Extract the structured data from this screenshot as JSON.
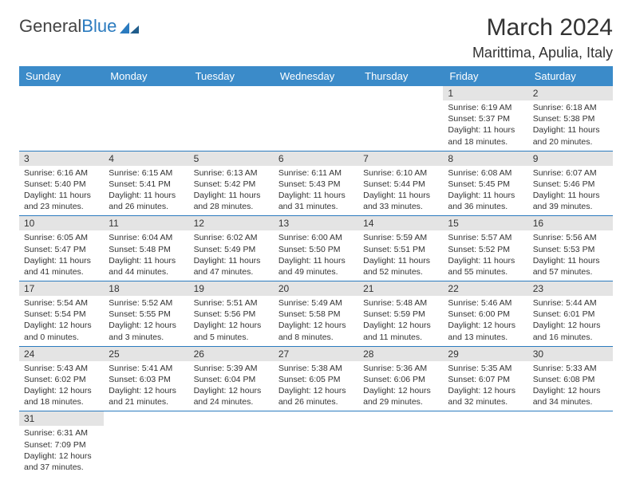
{
  "brand": {
    "part1": "General",
    "part2": "Blue"
  },
  "title": {
    "month": "March 2024",
    "location": "Marittima, Apulia, Italy"
  },
  "colors": {
    "header_bg": "#3b8bc9",
    "header_fg": "#ffffff",
    "accent": "#2b7bbf",
    "daynum_bg": "#e4e4e4",
    "text": "#333333"
  },
  "day_headers": [
    "Sunday",
    "Monday",
    "Tuesday",
    "Wednesday",
    "Thursday",
    "Friday",
    "Saturday"
  ],
  "weeks": [
    [
      null,
      null,
      null,
      null,
      null,
      {
        "n": "1",
        "sunrise": "Sunrise: 6:19 AM",
        "sunset": "Sunset: 5:37 PM",
        "daylight": "Daylight: 11 hours and 18 minutes."
      },
      {
        "n": "2",
        "sunrise": "Sunrise: 6:18 AM",
        "sunset": "Sunset: 5:38 PM",
        "daylight": "Daylight: 11 hours and 20 minutes."
      }
    ],
    [
      {
        "n": "3",
        "sunrise": "Sunrise: 6:16 AM",
        "sunset": "Sunset: 5:40 PM",
        "daylight": "Daylight: 11 hours and 23 minutes."
      },
      {
        "n": "4",
        "sunrise": "Sunrise: 6:15 AM",
        "sunset": "Sunset: 5:41 PM",
        "daylight": "Daylight: 11 hours and 26 minutes."
      },
      {
        "n": "5",
        "sunrise": "Sunrise: 6:13 AM",
        "sunset": "Sunset: 5:42 PM",
        "daylight": "Daylight: 11 hours and 28 minutes."
      },
      {
        "n": "6",
        "sunrise": "Sunrise: 6:11 AM",
        "sunset": "Sunset: 5:43 PM",
        "daylight": "Daylight: 11 hours and 31 minutes."
      },
      {
        "n": "7",
        "sunrise": "Sunrise: 6:10 AM",
        "sunset": "Sunset: 5:44 PM",
        "daylight": "Daylight: 11 hours and 33 minutes."
      },
      {
        "n": "8",
        "sunrise": "Sunrise: 6:08 AM",
        "sunset": "Sunset: 5:45 PM",
        "daylight": "Daylight: 11 hours and 36 minutes."
      },
      {
        "n": "9",
        "sunrise": "Sunrise: 6:07 AM",
        "sunset": "Sunset: 5:46 PM",
        "daylight": "Daylight: 11 hours and 39 minutes."
      }
    ],
    [
      {
        "n": "10",
        "sunrise": "Sunrise: 6:05 AM",
        "sunset": "Sunset: 5:47 PM",
        "daylight": "Daylight: 11 hours and 41 minutes."
      },
      {
        "n": "11",
        "sunrise": "Sunrise: 6:04 AM",
        "sunset": "Sunset: 5:48 PM",
        "daylight": "Daylight: 11 hours and 44 minutes."
      },
      {
        "n": "12",
        "sunrise": "Sunrise: 6:02 AM",
        "sunset": "Sunset: 5:49 PM",
        "daylight": "Daylight: 11 hours and 47 minutes."
      },
      {
        "n": "13",
        "sunrise": "Sunrise: 6:00 AM",
        "sunset": "Sunset: 5:50 PM",
        "daylight": "Daylight: 11 hours and 49 minutes."
      },
      {
        "n": "14",
        "sunrise": "Sunrise: 5:59 AM",
        "sunset": "Sunset: 5:51 PM",
        "daylight": "Daylight: 11 hours and 52 minutes."
      },
      {
        "n": "15",
        "sunrise": "Sunrise: 5:57 AM",
        "sunset": "Sunset: 5:52 PM",
        "daylight": "Daylight: 11 hours and 55 minutes."
      },
      {
        "n": "16",
        "sunrise": "Sunrise: 5:56 AM",
        "sunset": "Sunset: 5:53 PM",
        "daylight": "Daylight: 11 hours and 57 minutes."
      }
    ],
    [
      {
        "n": "17",
        "sunrise": "Sunrise: 5:54 AM",
        "sunset": "Sunset: 5:54 PM",
        "daylight": "Daylight: 12 hours and 0 minutes."
      },
      {
        "n": "18",
        "sunrise": "Sunrise: 5:52 AM",
        "sunset": "Sunset: 5:55 PM",
        "daylight": "Daylight: 12 hours and 3 minutes."
      },
      {
        "n": "19",
        "sunrise": "Sunrise: 5:51 AM",
        "sunset": "Sunset: 5:56 PM",
        "daylight": "Daylight: 12 hours and 5 minutes."
      },
      {
        "n": "20",
        "sunrise": "Sunrise: 5:49 AM",
        "sunset": "Sunset: 5:58 PM",
        "daylight": "Daylight: 12 hours and 8 minutes."
      },
      {
        "n": "21",
        "sunrise": "Sunrise: 5:48 AM",
        "sunset": "Sunset: 5:59 PM",
        "daylight": "Daylight: 12 hours and 11 minutes."
      },
      {
        "n": "22",
        "sunrise": "Sunrise: 5:46 AM",
        "sunset": "Sunset: 6:00 PM",
        "daylight": "Daylight: 12 hours and 13 minutes."
      },
      {
        "n": "23",
        "sunrise": "Sunrise: 5:44 AM",
        "sunset": "Sunset: 6:01 PM",
        "daylight": "Daylight: 12 hours and 16 minutes."
      }
    ],
    [
      {
        "n": "24",
        "sunrise": "Sunrise: 5:43 AM",
        "sunset": "Sunset: 6:02 PM",
        "daylight": "Daylight: 12 hours and 18 minutes."
      },
      {
        "n": "25",
        "sunrise": "Sunrise: 5:41 AM",
        "sunset": "Sunset: 6:03 PM",
        "daylight": "Daylight: 12 hours and 21 minutes."
      },
      {
        "n": "26",
        "sunrise": "Sunrise: 5:39 AM",
        "sunset": "Sunset: 6:04 PM",
        "daylight": "Daylight: 12 hours and 24 minutes."
      },
      {
        "n": "27",
        "sunrise": "Sunrise: 5:38 AM",
        "sunset": "Sunset: 6:05 PM",
        "daylight": "Daylight: 12 hours and 26 minutes."
      },
      {
        "n": "28",
        "sunrise": "Sunrise: 5:36 AM",
        "sunset": "Sunset: 6:06 PM",
        "daylight": "Daylight: 12 hours and 29 minutes."
      },
      {
        "n": "29",
        "sunrise": "Sunrise: 5:35 AM",
        "sunset": "Sunset: 6:07 PM",
        "daylight": "Daylight: 12 hours and 32 minutes."
      },
      {
        "n": "30",
        "sunrise": "Sunrise: 5:33 AM",
        "sunset": "Sunset: 6:08 PM",
        "daylight": "Daylight: 12 hours and 34 minutes."
      }
    ],
    [
      {
        "n": "31",
        "sunrise": "Sunrise: 6:31 AM",
        "sunset": "Sunset: 7:09 PM",
        "daylight": "Daylight: 12 hours and 37 minutes."
      },
      null,
      null,
      null,
      null,
      null,
      null
    ]
  ]
}
